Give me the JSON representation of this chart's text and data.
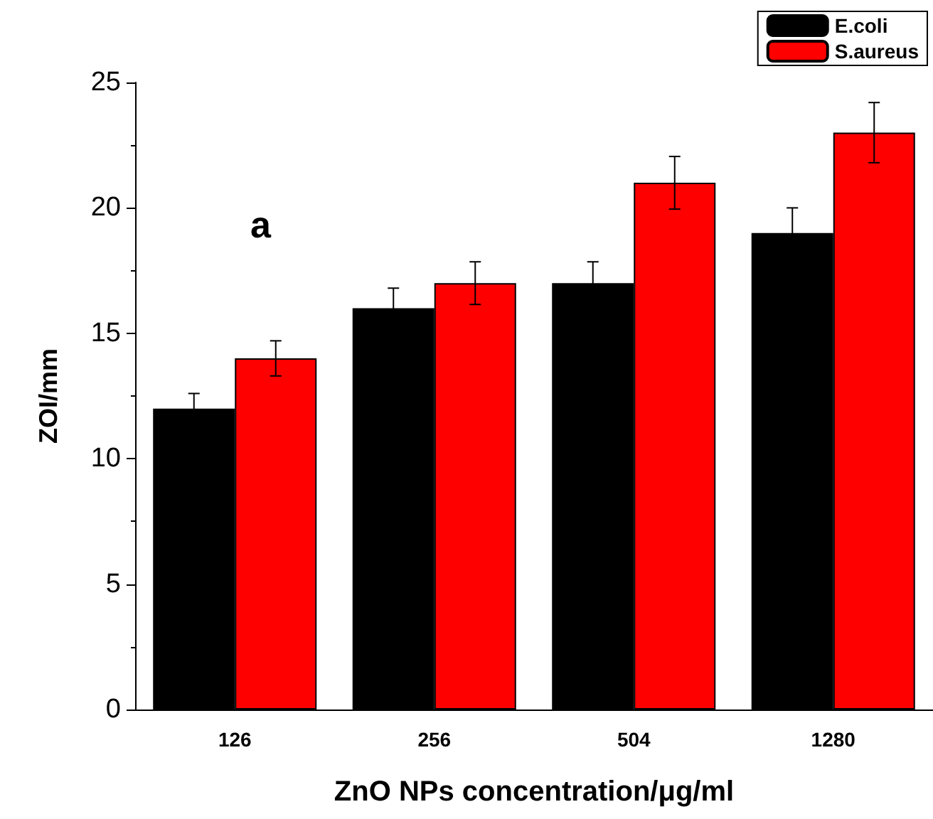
{
  "chart_data": {
    "type": "bar",
    "categories": [
      "126",
      "256",
      "504",
      "1280"
    ],
    "series": [
      {
        "name": "E.coli",
        "color": "#000000",
        "values": [
          12,
          16,
          17,
          19
        ],
        "errors": [
          0.6,
          0.8,
          0.85,
          1
        ]
      },
      {
        "name": "S.aureus",
        "color": "#ff0000",
        "values": [
          14,
          17,
          21,
          23
        ],
        "errors": [
          0.7,
          0.85,
          1.05,
          1.2
        ]
      }
    ],
    "xlabel": "ZnO NPs concentration/μg/ml",
    "ylabel": "ZOI/mm",
    "annotations": [
      "a"
    ],
    "ylim": [
      0,
      25
    ],
    "yticks": [
      0,
      5,
      10,
      15,
      20,
      25
    ],
    "grid": false,
    "legend": "top right"
  }
}
